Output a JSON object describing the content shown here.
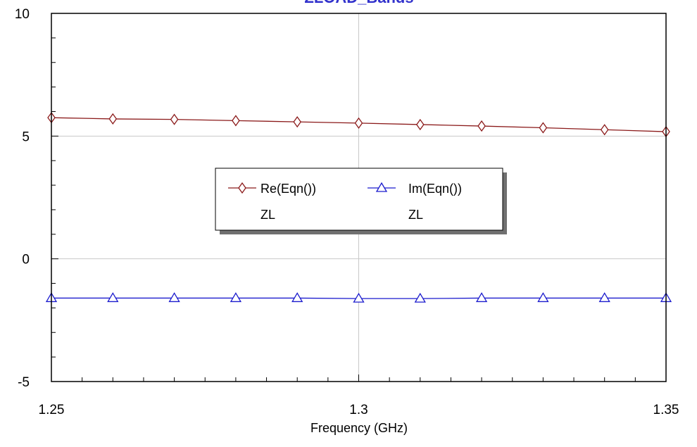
{
  "chart_data": {
    "type": "line",
    "title": "ZLOAD_Bands",
    "xlabel": "Frequency (GHz)",
    "ylabel": "",
    "xlim": [
      1.25,
      1.35
    ],
    "ylim": [
      -5,
      10
    ],
    "x_ticks": [
      "1.25",
      "1.3",
      "1.35"
    ],
    "y_ticks": [
      "10",
      "5",
      "0",
      "-5"
    ],
    "grid": true,
    "legend_position": "center",
    "x": [
      1.25,
      1.26,
      1.27,
      1.28,
      1.29,
      1.3,
      1.31,
      1.32,
      1.33,
      1.34,
      1.35
    ],
    "series": [
      {
        "name": "Re(Eqn())",
        "sublabel": "ZL",
        "color": "#8b1a1a",
        "marker": "diamond",
        "values": [
          5.75,
          5.7,
          5.68,
          5.63,
          5.58,
          5.53,
          5.47,
          5.41,
          5.34,
          5.26,
          5.18
        ]
      },
      {
        "name": "Im(Eqn())",
        "sublabel": "ZL",
        "color": "#1a1acd",
        "marker": "triangle",
        "values": [
          -1.6,
          -1.6,
          -1.6,
          -1.6,
          -1.6,
          -1.62,
          -1.62,
          -1.6,
          -1.6,
          -1.6,
          -1.6
        ]
      }
    ]
  }
}
